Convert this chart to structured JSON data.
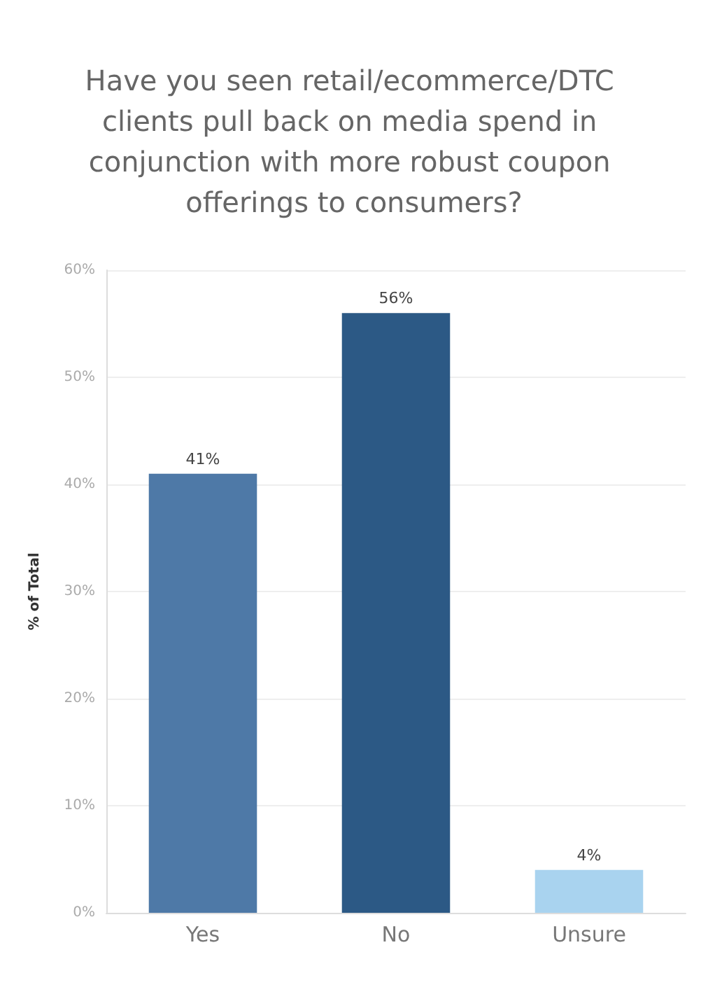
{
  "chart_data": {
    "type": "bar",
    "title": "Have you seen retail/ecommerce/DTC clients pull back on media spend in conjunction with more robust coupon offerings to consumers?",
    "ylabel": "% of Total",
    "categories": [
      "Yes",
      "No",
      "Unsure"
    ],
    "values": [
      41,
      56,
      4
    ],
    "colors": [
      "#4e79a7",
      "#2c5985",
      "#a9d3ef"
    ],
    "value_labels": [
      "41%",
      "56%",
      "4%"
    ],
    "ylim": [
      0,
      60
    ],
    "yticks": [
      {
        "value": 0,
        "label": "0%"
      },
      {
        "value": 10,
        "label": "10%"
      },
      {
        "value": 20,
        "label": "20%"
      },
      {
        "value": 30,
        "label": "30%"
      },
      {
        "value": 40,
        "label": "40%"
      },
      {
        "value": 50,
        "label": "50%"
      },
      {
        "value": 60,
        "label": "60%"
      }
    ],
    "grid": "y"
  }
}
